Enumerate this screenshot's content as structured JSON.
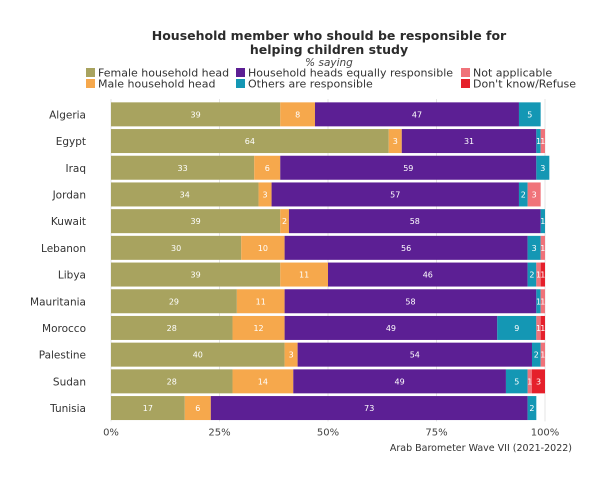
{
  "chart_data": {
    "type": "bar",
    "orientation": "horizontal",
    "stacked": true,
    "title_line1": "Household member who should be responsible for",
    "title_line2": "helping children study",
    "subtitle": "% saying",
    "categories": [
      "Algeria",
      "Egypt",
      "Iraq",
      "Jordan",
      "Kuwait",
      "Lebanon",
      "Libya",
      "Mauritania",
      "Morocco",
      "Palestine",
      "Sudan",
      "Tunisia"
    ],
    "series": [
      {
        "name": "Female household head",
        "color": "#a8a35f",
        "values": [
          39,
          64,
          33,
          34,
          39,
          30,
          39,
          29,
          28,
          40,
          28,
          17
        ]
      },
      {
        "name": "Male household head",
        "color": "#f6a84c",
        "values": [
          8,
          3,
          6,
          3,
          2,
          10,
          11,
          11,
          12,
          3,
          14,
          6
        ]
      },
      {
        "name": "Household heads equally responsible",
        "color": "#5c1f94",
        "values": [
          47,
          31,
          59,
          57,
          58,
          56,
          46,
          58,
          49,
          54,
          49,
          73
        ]
      },
      {
        "name": "Others are responsible",
        "color": "#1497b4",
        "values": [
          5,
          1,
          3,
          2,
          1,
          3,
          2,
          1,
          9,
          2,
          5,
          2
        ]
      },
      {
        "name": "Not applicable",
        "color": "#f0737a",
        "values": [
          0,
          1,
          0,
          3,
          0,
          1,
          1,
          1,
          1,
          1,
          1,
          0
        ]
      },
      {
        "name": "Don't know/Refuse",
        "color": "#e5202b",
        "values": [
          0,
          0,
          0,
          0,
          0,
          0,
          1,
          0,
          1,
          0,
          3,
          0
        ]
      }
    ],
    "value_labels": [
      [
        "39",
        "8",
        "47",
        "5",
        "",
        ""
      ],
      [
        "64",
        "3",
        "31",
        "1",
        "1",
        ""
      ],
      [
        "33",
        "6",
        "59",
        "3",
        "",
        ""
      ],
      [
        "34",
        "3",
        "57",
        "2",
        "3",
        ""
      ],
      [
        "39",
        "2",
        "58",
        "1",
        "",
        ""
      ],
      [
        "30",
        "10",
        "56",
        "3",
        "1",
        ""
      ],
      [
        "39",
        "11",
        "46",
        "2",
        "1",
        "1"
      ],
      [
        "29",
        "11",
        "58",
        "1",
        "1",
        ""
      ],
      [
        "28",
        "12",
        "49",
        "9",
        "1",
        "1"
      ],
      [
        "40",
        "3",
        "54",
        "2",
        "1",
        ""
      ],
      [
        "28",
        "14",
        "49",
        "5",
        "1",
        "3"
      ],
      [
        "17",
        "6",
        "73",
        "2",
        "",
        ""
      ]
    ],
    "xlim": [
      0,
      100
    ],
    "xticks": [
      "0%",
      "25%",
      "50%",
      "75%",
      "100%"
    ],
    "xtick_values": [
      0,
      25,
      50,
      75,
      100
    ],
    "legend_position": "top",
    "source": "Arab Barometer Wave VII (2021-2022)"
  }
}
